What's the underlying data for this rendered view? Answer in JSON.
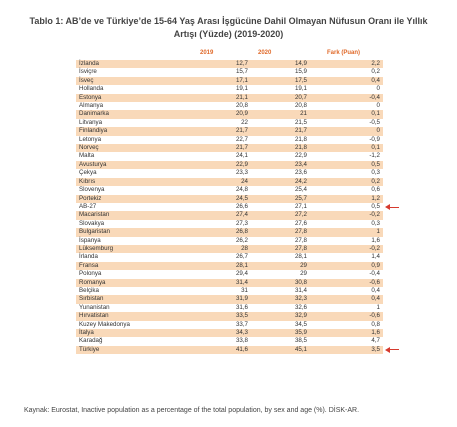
{
  "title_line1": "Tablo 1: AB’de ve Türkiye’de 15-64 Yaş Arası İşgücüne Dahil Olmayan Nüfusun Oranı ile Yıllık",
  "title_line2": "Artışı (Yüzde) (2019-2020)",
  "columns": {
    "y2019": "2019",
    "y2020": "2020",
    "diff": "Fark (Puan)"
  },
  "rows": [
    {
      "country": "İzlanda",
      "v2019": "12,7",
      "v2020": "14,9",
      "diff": "2,2"
    },
    {
      "country": "İsviçre",
      "v2019": "15,7",
      "v2020": "15,9",
      "diff": "0,2"
    },
    {
      "country": "İsveç",
      "v2019": "17,1",
      "v2020": "17,5",
      "diff": "0,4"
    },
    {
      "country": "Hollanda",
      "v2019": "19,1",
      "v2020": "19,1",
      "diff": "0"
    },
    {
      "country": "Estonya",
      "v2019": "21,1",
      "v2020": "20,7",
      "diff": "-0,4"
    },
    {
      "country": "Almanya",
      "v2019": "20,8",
      "v2020": "20,8",
      "diff": "0"
    },
    {
      "country": "Danimarka",
      "v2019": "20,9",
      "v2020": "21",
      "diff": "0,1"
    },
    {
      "country": "Litvanya",
      "v2019": "22",
      "v2020": "21,5",
      "diff": "-0,5"
    },
    {
      "country": "Finlandiya",
      "v2019": "21,7",
      "v2020": "21,7",
      "diff": "0"
    },
    {
      "country": "Letonya",
      "v2019": "22,7",
      "v2020": "21,8",
      "diff": "-0,9"
    },
    {
      "country": "Norveç",
      "v2019": "21,7",
      "v2020": "21,8",
      "diff": "0,1"
    },
    {
      "country": "Malta",
      "v2019": "24,1",
      "v2020": "22,9",
      "diff": "-1,2"
    },
    {
      "country": "Avusturya",
      "v2019": "22,9",
      "v2020": "23,4",
      "diff": "0,5"
    },
    {
      "country": "Çekya",
      "v2019": "23,3",
      "v2020": "23,6",
      "diff": "0,3"
    },
    {
      "country": "Kıbrıs",
      "v2019": "24",
      "v2020": "24,2",
      "diff": "0,2"
    },
    {
      "country": "Slovenya",
      "v2019": "24,8",
      "v2020": "25,4",
      "diff": "0,6"
    },
    {
      "country": "Portekiz",
      "v2019": "24,5",
      "v2020": "25,7",
      "diff": "1,2"
    },
    {
      "country": "AB-27",
      "v2019": "26,6",
      "v2020": "27,1",
      "diff": "0,5",
      "arrow": true
    },
    {
      "country": "Macaristan",
      "v2019": "27,4",
      "v2020": "27,2",
      "diff": "-0,2"
    },
    {
      "country": "Slovakya",
      "v2019": "27,3",
      "v2020": "27,6",
      "diff": "0,3"
    },
    {
      "country": "Bulgaristan",
      "v2019": "26,8",
      "v2020": "27,8",
      "diff": "1"
    },
    {
      "country": "İspanya",
      "v2019": "26,2",
      "v2020": "27,8",
      "diff": "1,6"
    },
    {
      "country": "Lüksemburg",
      "v2019": "28",
      "v2020": "27,8",
      "diff": "-0,2"
    },
    {
      "country": "İrlanda",
      "v2019": "26,7",
      "v2020": "28,1",
      "diff": "1,4"
    },
    {
      "country": "Fransa",
      "v2019": "28,1",
      "v2020": "29",
      "diff": "0,9"
    },
    {
      "country": "Polonya",
      "v2019": "29,4",
      "v2020": "29",
      "diff": "-0,4"
    },
    {
      "country": "Romanya",
      "v2019": "31,4",
      "v2020": "30,8",
      "diff": "-0,6"
    },
    {
      "country": "Belçika",
      "v2019": "31",
      "v2020": "31,4",
      "diff": "0,4"
    },
    {
      "country": "Sırbistan",
      "v2019": "31,9",
      "v2020": "32,3",
      "diff": "0,4"
    },
    {
      "country": "Yunanistan",
      "v2019": "31,6",
      "v2020": "32,6",
      "diff": "1"
    },
    {
      "country": "Hırvatistan",
      "v2019": "33,5",
      "v2020": "32,9",
      "diff": "-0,6"
    },
    {
      "country": "Kuzey Makedonya",
      "v2019": "33,7",
      "v2020": "34,5",
      "diff": "0,8"
    },
    {
      "country": "İtalya",
      "v2019": "34,3",
      "v2020": "35,9",
      "diff": "1,6"
    },
    {
      "country": "Karadağ",
      "v2019": "33,8",
      "v2020": "38,5",
      "diff": "4,7"
    },
    {
      "country": "Türkiye",
      "v2019": "41,6",
      "v2020": "45,1",
      "diff": "3,5",
      "arrow": true
    }
  ],
  "source": "Kaynak: Eurostat, Inactive population as a percentage of the total population, by sex and age (%). DİSK-AR.",
  "colors": {
    "accent": "#e06a2a",
    "stripe": "#f9d9b9",
    "arrow": "#d63a2e"
  }
}
